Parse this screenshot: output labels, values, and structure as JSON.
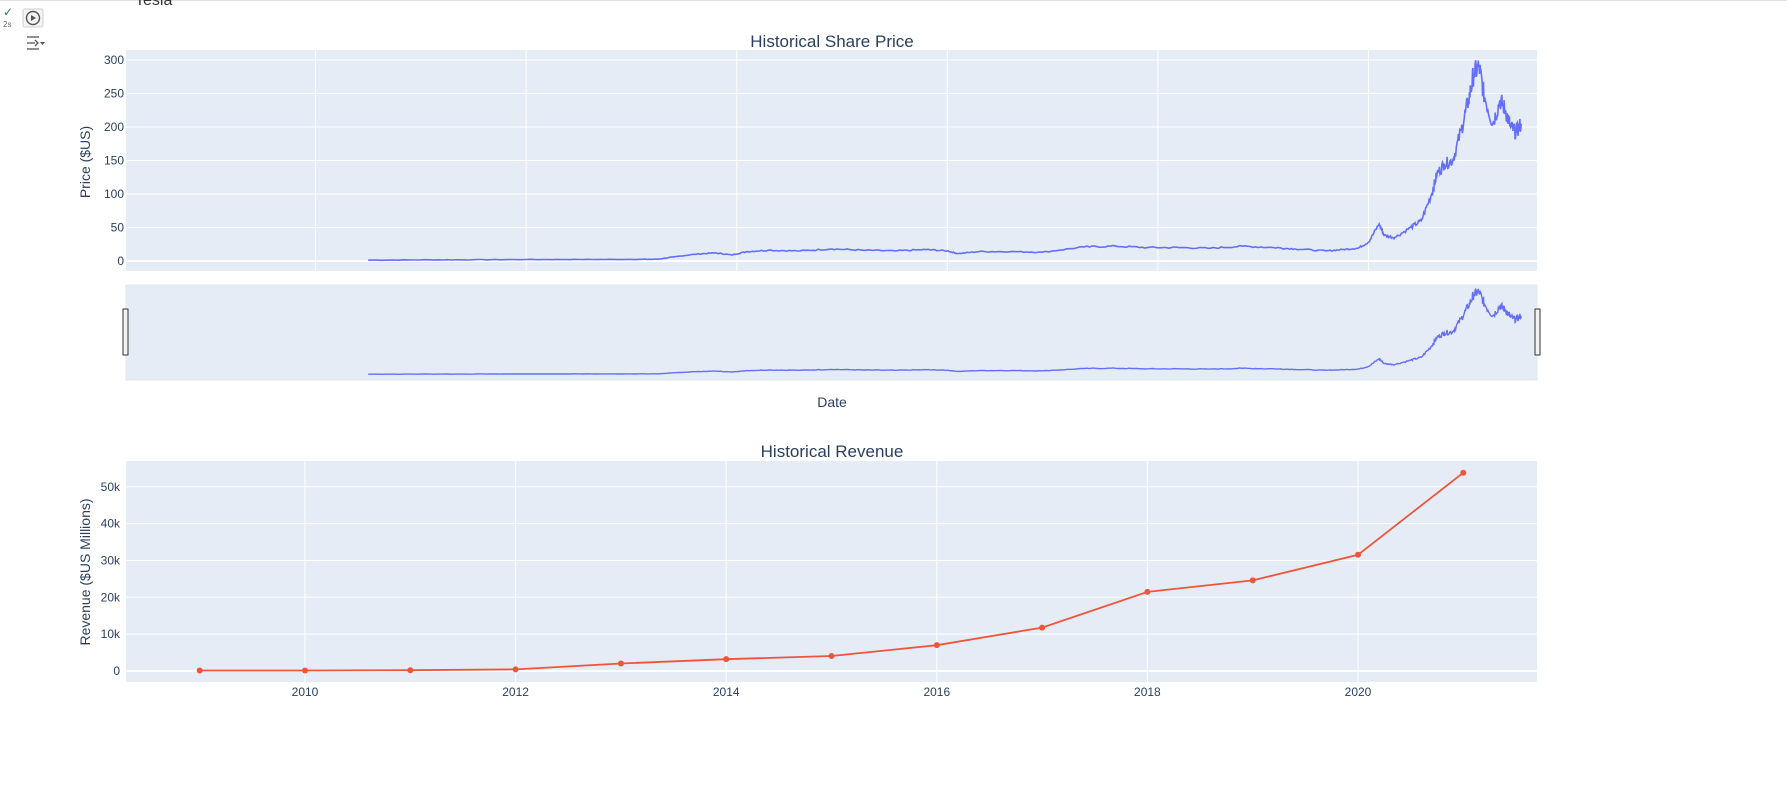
{
  "notebook": {
    "cell_status": "✓",
    "elapsed": "2s",
    "heading": "Tesla"
  },
  "colors": {
    "plot_bg": "#e5ecf6",
    "price_line": "#636efa",
    "revenue_line": "#ef553b",
    "grid": "#ffffff",
    "text": "#2a3f5f"
  },
  "chart_data": [
    {
      "type": "line",
      "title": "Historical Share Price",
      "xlabel": "Date",
      "ylabel": "Price ($US)",
      "xlim": [
        2008.2,
        2021.6
      ],
      "ylim": [
        -15,
        315
      ],
      "x_ticks": [
        2010,
        2012,
        2014,
        2016,
        2018,
        2020
      ],
      "y_ticks": [
        0,
        50,
        100,
        150,
        200,
        250,
        300
      ],
      "y_tick_labels": [
        "0",
        "50",
        "100",
        "150",
        "200",
        "250",
        "300"
      ],
      "grid": true,
      "range_slider": true,
      "series": [
        {
          "x": [
            2010.5,
            2011.0,
            2011.5,
            2012.0,
            2012.5,
            2013.0,
            2013.25,
            2013.4,
            2013.6,
            2013.8,
            2013.95,
            2014.1,
            2014.3,
            2014.6,
            2014.9,
            2015.2,
            2015.5,
            2015.8,
            2016.0,
            2016.1,
            2016.3,
            2016.6,
            2016.9,
            2017.3,
            2017.6,
            2017.9,
            2018.2,
            2018.5,
            2018.8,
            2019.1,
            2019.3,
            2019.6,
            2019.75,
            2019.9,
            2020.0,
            2020.1,
            2020.15,
            2020.25,
            2020.4,
            2020.5,
            2020.6,
            2020.65,
            2020.72,
            2020.8,
            2020.88,
            2020.95,
            2021.0,
            2021.05,
            2021.1,
            2021.18,
            2021.25,
            2021.3,
            2021.35,
            2021.4,
            2021.45
          ],
          "y": [
            1.2,
            1.6,
            1.8,
            2.1,
            2.2,
            2.3,
            2.6,
            6,
            10,
            12,
            9,
            14,
            16,
            15,
            18,
            16,
            15,
            17,
            15,
            11,
            14,
            14,
            13,
            21,
            22,
            20,
            20,
            19,
            22,
            20,
            18,
            15,
            17,
            19,
            28,
            55,
            38,
            35,
            50,
            60,
            100,
            130,
            145,
            150,
            195,
            240,
            280,
            290,
            245,
            205,
            240,
            225,
            200,
            192,
            205
          ]
        }
      ]
    },
    {
      "type": "line",
      "title": "Historical Revenue",
      "xlabel": "",
      "ylabel": "Revenue ($US Millions)",
      "xlim": [
        2008.3,
        2021.7
      ],
      "ylim": [
        -3000,
        57000
      ],
      "x_ticks": [
        2010,
        2012,
        2014,
        2016,
        2018,
        2020
      ],
      "y_ticks": [
        0,
        10000,
        20000,
        30000,
        40000,
        50000
      ],
      "y_tick_labels": [
        "0",
        "10k",
        "20k",
        "30k",
        "40k",
        "50k"
      ],
      "grid": true,
      "markers": true,
      "series": [
        {
          "x": [
            2009,
            2010,
            2011,
            2012,
            2013,
            2014,
            2015,
            2016,
            2017,
            2018,
            2019,
            2020,
            2021
          ],
          "y": [
            112,
            117,
            204,
            413,
            2013,
            3198,
            4046,
            7000,
            11759,
            21461,
            24578,
            31536,
            53823
          ]
        }
      ]
    }
  ]
}
